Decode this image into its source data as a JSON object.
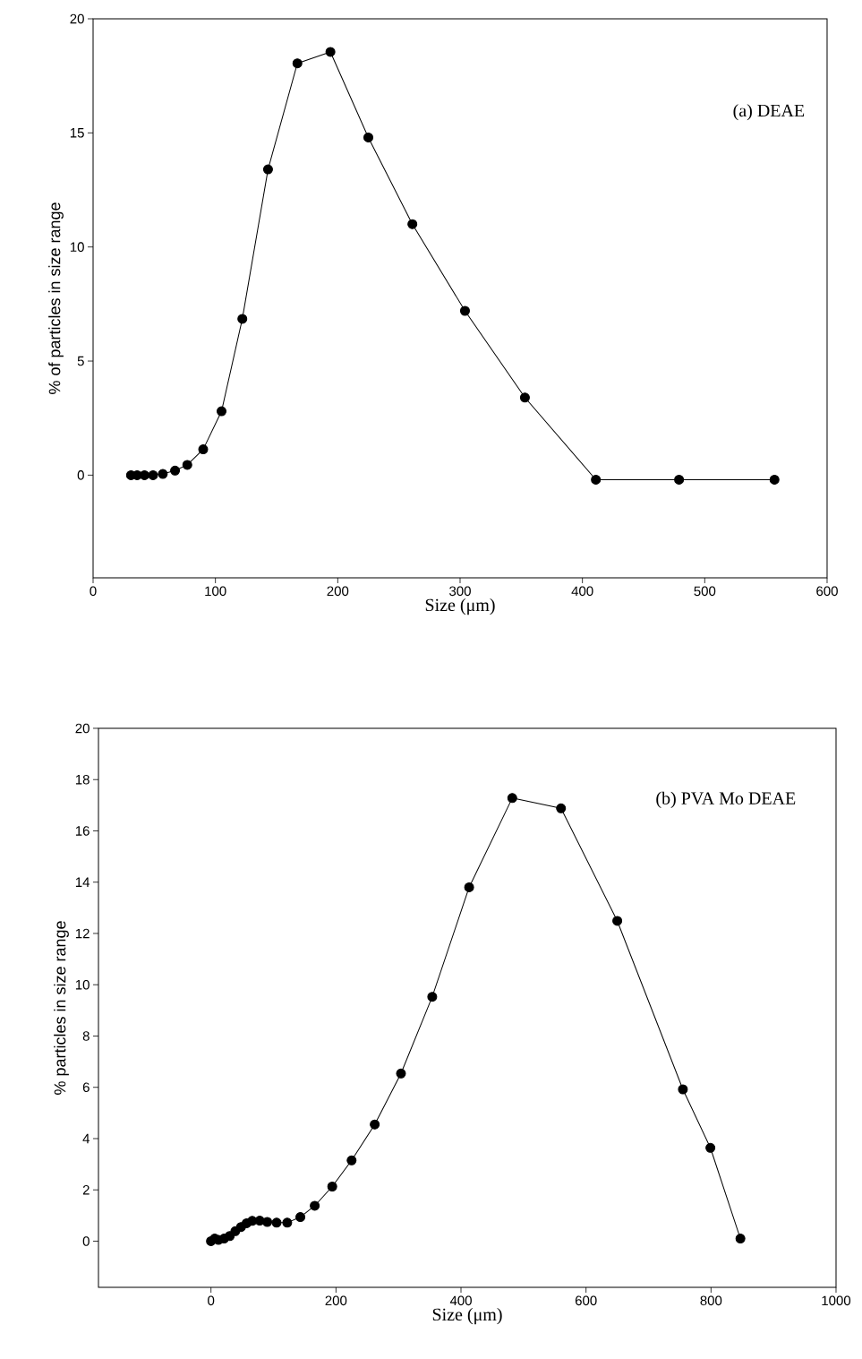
{
  "chart_data": [
    {
      "type": "line",
      "xlabel": "Size (μm)",
      "ylabel": "% of particles in size range",
      "annotations": [
        "(a) DEAE"
      ],
      "marker": "circle",
      "color": "#000000",
      "x": [
        31,
        36,
        42,
        49,
        57,
        67,
        77,
        90,
        105,
        122,
        143,
        167,
        194,
        225,
        261,
        304,
        353,
        411,
        479,
        557
      ],
      "values": [
        0,
        0,
        0,
        0,
        0.05,
        0.2,
        0.45,
        1.13,
        2.8,
        6.85,
        13.4,
        18.05,
        18.55,
        14.8,
        11.0,
        7.2,
        3.4,
        -0.2,
        -0.2,
        -0.2
      ],
      "xlim": [
        0,
        600
      ],
      "ylim": [
        -4.5,
        20
      ],
      "xticks": [
        0,
        100,
        200,
        300,
        400,
        500,
        600
      ],
      "yticks": [
        0,
        5,
        10,
        15,
        20
      ]
    },
    {
      "type": "line",
      "xlabel": "Size (μm)",
      "ylabel": "% particles in size range",
      "annotations": [
        "(b) PVA Mo DEAE"
      ],
      "marker": "circle",
      "color": "#000000",
      "x": [
        0,
        6,
        12,
        21,
        30,
        39,
        48,
        57,
        66,
        78,
        90,
        105,
        122,
        143,
        166,
        194,
        225,
        262,
        304,
        354,
        413,
        482,
        560,
        650,
        755,
        799,
        847
      ],
      "values": [
        0,
        0.1,
        0.05,
        0.1,
        0.2,
        0.39,
        0.55,
        0.7,
        0.79,
        0.8,
        0.75,
        0.72,
        0.72,
        0.94,
        1.38,
        2.13,
        3.15,
        4.55,
        6.54,
        9.53,
        13.8,
        17.28,
        16.88,
        12.49,
        5.92,
        3.64,
        0.1
      ],
      "xlim": [
        -180,
        1000
      ],
      "ylim": [
        -1.8,
        20
      ],
      "xticks": [
        0,
        200,
        400,
        600,
        800,
        1000
      ],
      "yticks": [
        0,
        2,
        4,
        6,
        8,
        10,
        12,
        14,
        16,
        18,
        20
      ]
    }
  ]
}
